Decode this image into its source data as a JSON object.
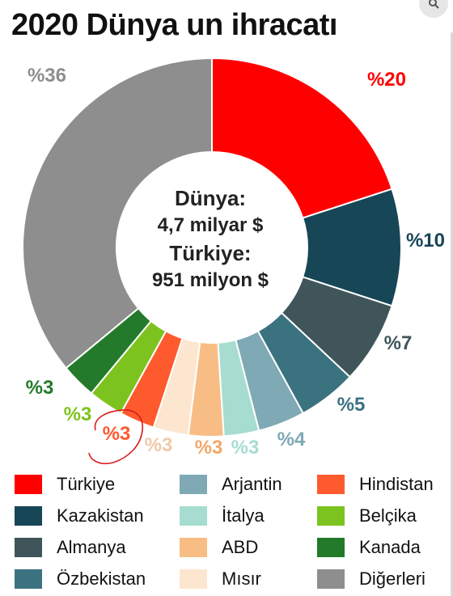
{
  "title": "2020 Dünya un ihracatı",
  "center": {
    "world_label": "Dünya:",
    "world_value": "4,7 milyar $",
    "turkey_label": "Türkiye:",
    "turkey_value": "951 milyon $"
  },
  "chart_data": {
    "type": "pie",
    "title": "2020 Dünya un ihracatı",
    "style": "donut",
    "legend_placement": "bottom",
    "slices": [
      {
        "name": "Türkiye",
        "value": 20,
        "label": "%20",
        "color": "#ff0000"
      },
      {
        "name": "Kazakistan",
        "value": 10,
        "label": "%10",
        "color": "#174656"
      },
      {
        "name": "Almanya",
        "value": 7,
        "label": "%7",
        "color": "#3f5559"
      },
      {
        "name": "Özbekistan",
        "value": 5,
        "label": "%5",
        "color": "#3b7280"
      },
      {
        "name": "Arjantin",
        "value": 4,
        "label": "%4",
        "color": "#7fa9b5"
      },
      {
        "name": "İtalya",
        "value": 3,
        "label": "%3",
        "color": "#a6ddd0"
      },
      {
        "name": "ABD",
        "value": 3,
        "label": "%3",
        "color": "#f8bd84"
      },
      {
        "name": "Mısır",
        "value": 3,
        "label": "%3",
        "color": "#fde6cf"
      },
      {
        "name": "Hindistan",
        "value": 3,
        "label": "%3",
        "color": "#ff5a2e"
      },
      {
        "name": "Belçika",
        "value": 3,
        "label": "%3",
        "color": "#7dc31f"
      },
      {
        "name": "Kanada",
        "value": 3,
        "label": "%3",
        "color": "#237a2a"
      },
      {
        "name": "Diğerleri",
        "value": 36,
        "label": "%36",
        "color": "#8e8e8e"
      }
    ]
  },
  "legend": [
    {
      "label": "Türkiye",
      "color": "#ff0000"
    },
    {
      "label": "Kazakistan",
      "color": "#174656"
    },
    {
      "label": "Almanya",
      "color": "#3f5559"
    },
    {
      "label": "Özbekistan",
      "color": "#3b7280"
    },
    {
      "label": "Arjantin",
      "color": "#7fa9b5"
    },
    {
      "label": "İtalya",
      "color": "#a6ddd0"
    },
    {
      "label": "ABD",
      "color": "#f8bd84"
    },
    {
      "label": "Mısır",
      "color": "#fde6cf"
    },
    {
      "label": "Hindistan",
      "color": "#ff5a2e"
    },
    {
      "label": "Belçika",
      "color": "#7dc31f"
    },
    {
      "label": "Kanada",
      "color": "#237a2a"
    },
    {
      "label": "Diğerleri",
      "color": "#8e8e8e"
    }
  ],
  "annotation": {
    "color": "#d81b1b"
  }
}
